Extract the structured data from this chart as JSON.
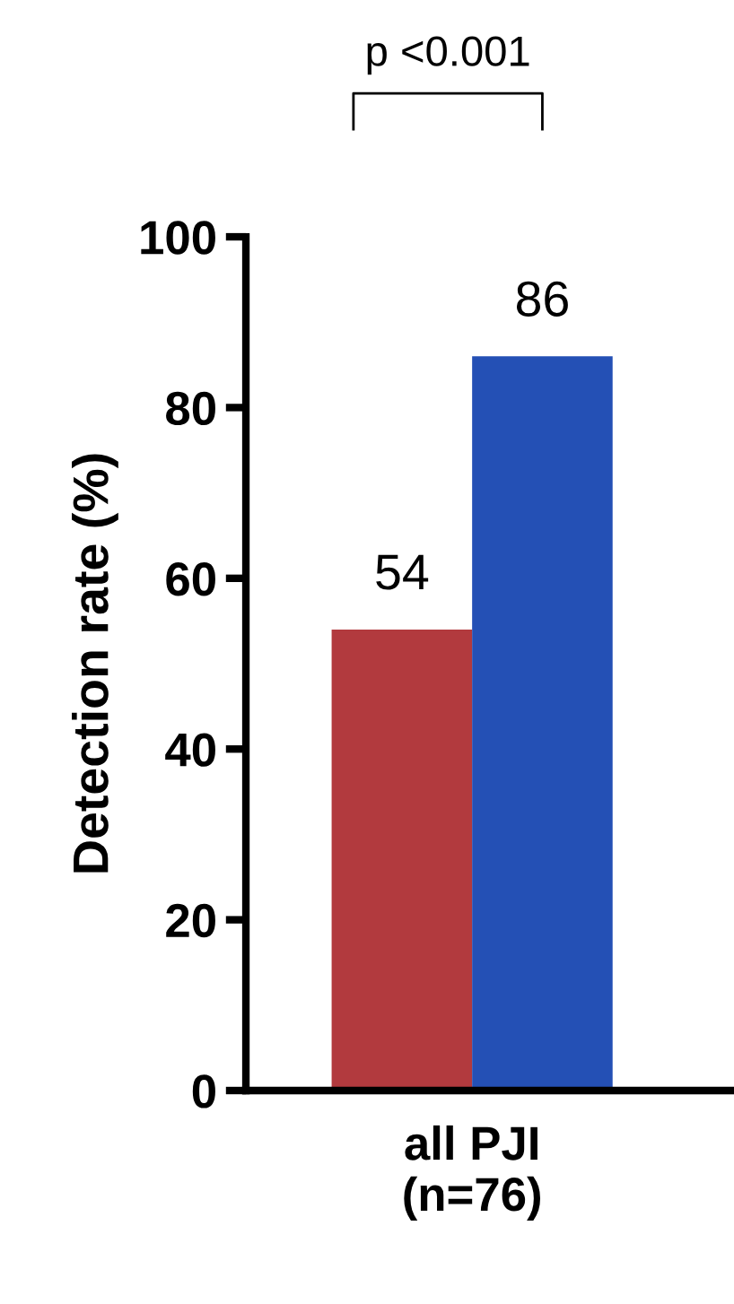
{
  "chart_data": {
    "type": "bar",
    "ylabel": "Detection rate (%)",
    "categories": [
      "all PJI\n(n=76)"
    ],
    "series": [
      {
        "color": "#b23a3e",
        "values": [
          54
        ]
      },
      {
        "color": "#2450b5",
        "values": [
          86
        ]
      }
    ],
    "ylim": [
      0,
      100
    ],
    "yticks": [
      0,
      20,
      40,
      60,
      80,
      100
    ],
    "data_labels": true,
    "grid": false,
    "annotations": [
      "p <0.001"
    ]
  }
}
